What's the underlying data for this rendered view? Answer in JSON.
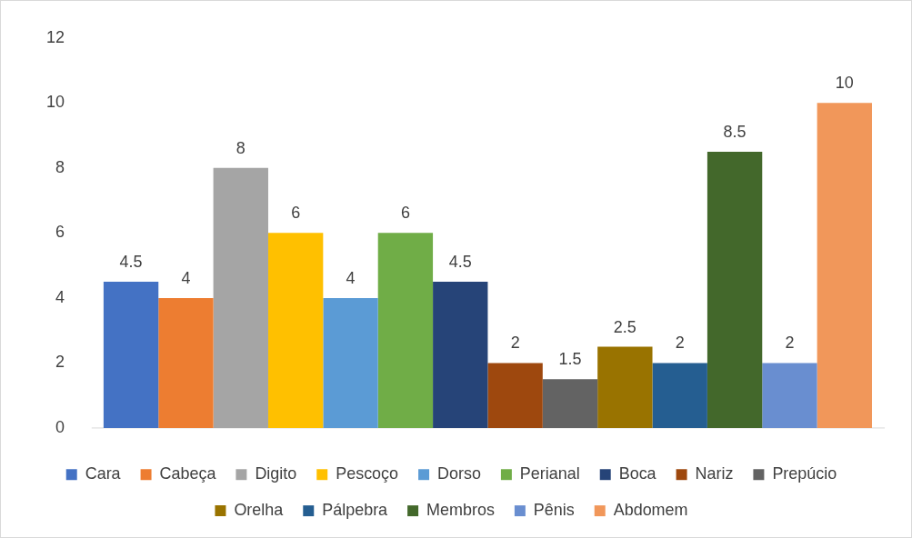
{
  "chart_data": {
    "type": "bar",
    "categories": [
      null
    ],
    "series": [
      {
        "name": "Cara",
        "color": "#4472c4",
        "values": [
          4.5
        ]
      },
      {
        "name": "Cabeça",
        "color": "#ed7d31",
        "values": [
          4
        ]
      },
      {
        "name": "Digito",
        "color": "#a5a5a5",
        "values": [
          8
        ]
      },
      {
        "name": "Pescoço",
        "color": "#ffc000",
        "values": [
          6
        ]
      },
      {
        "name": "Dorso",
        "color": "#5b9bd5",
        "values": [
          4
        ]
      },
      {
        "name": "Perianal",
        "color": "#70ad47",
        "values": [
          6
        ]
      },
      {
        "name": "Boca",
        "color": "#264478",
        "values": [
          4.5
        ]
      },
      {
        "name": "Nariz",
        "color": "#9e480e",
        "values": [
          2
        ]
      },
      {
        "name": "Prepúcio",
        "color": "#636363",
        "values": [
          1.5
        ]
      },
      {
        "name": "Orelha",
        "color": "#997300",
        "values": [
          2.5
        ]
      },
      {
        "name": "Pálpebra",
        "color": "#255e91",
        "values": [
          2
        ]
      },
      {
        "name": "Membros",
        "color": "#43682b",
        "values": [
          8.5
        ]
      },
      {
        "name": "Pênis",
        "color": "#698ed0",
        "values": [
          2
        ]
      },
      {
        "name": "Abdomem",
        "color": "#f1975a",
        "values": [
          10
        ]
      }
    ],
    "ylim": [
      0,
      12
    ],
    "yticks": [
      0,
      2,
      4,
      6,
      8,
      10,
      12
    ],
    "grid": false,
    "legend": "bottom",
    "data_labels": true
  }
}
